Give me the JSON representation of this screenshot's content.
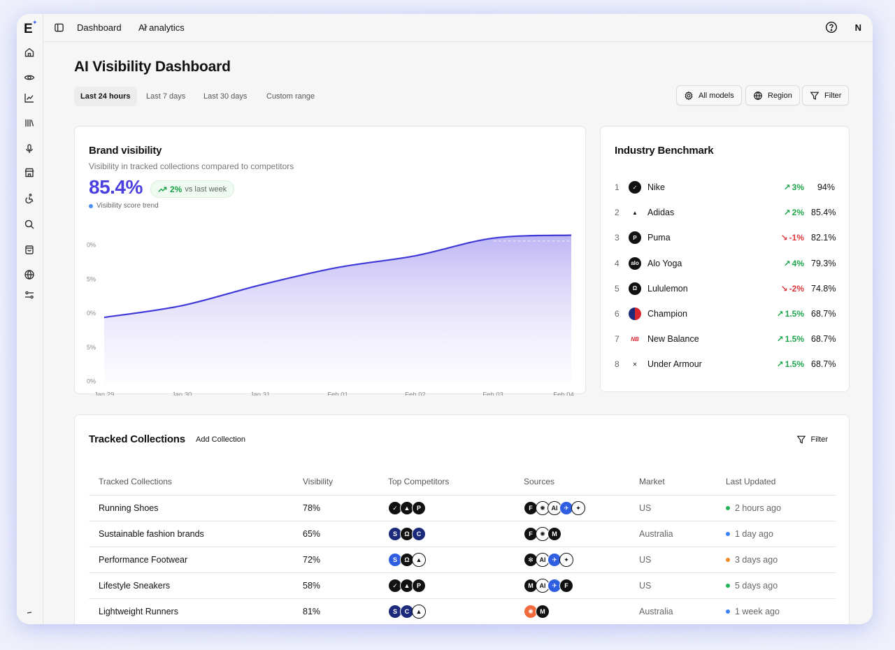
{
  "app": {
    "logo": "E"
  },
  "breadcrumb": {
    "root": "Dashboard",
    "current": "Ai analytics"
  },
  "user": {
    "avatar_initial": "N"
  },
  "page": {
    "title": "AI Visibility Dashboard"
  },
  "ranges": [
    "Last 24 hours",
    "Last 7 days",
    "Last 30 days",
    "Custom range"
  ],
  "active_range": "Last 24 hours",
  "toolbar": {
    "models_label": "All models",
    "region_label": "Region",
    "filter_label": "Filter"
  },
  "brand_card": {
    "title": "Brand visibility",
    "subtitle": "Visibility in tracked collections compared to competitors",
    "value": "85.4%",
    "delta": "2%",
    "delta_suffix": "vs last week",
    "legend": "Visibility score trend"
  },
  "chart_data": {
    "type": "area",
    "x": [
      "Jan 29",
      "Jan 30",
      "Jan 31",
      "Feb 01",
      "Feb 02",
      "Feb 03",
      "Feb 04"
    ],
    "y_tick_labels": [
      "0%",
      "5%",
      "0%",
      "5%",
      "0%"
    ],
    "series": [
      {
        "values": [
          12,
          16,
          23,
          29,
          33,
          39,
          40
        ]
      }
    ],
    "ylim": [
      0,
      40
    ],
    "grid": false,
    "color": "#3f39d8"
  },
  "benchmark": {
    "title": "Industry Benchmark",
    "rows": [
      {
        "rank": "1",
        "name": "Nike",
        "delta": "3%",
        "dir": "up",
        "value": "94%",
        "logo": "swoosh"
      },
      {
        "rank": "2",
        "name": "Adidas",
        "delta": "2%",
        "dir": "up",
        "value": "85.4%",
        "logo": "adidas-stripes"
      },
      {
        "rank": "3",
        "name": "Puma",
        "delta": "-1%",
        "dir": "down",
        "value": "82.1%",
        "logo": "puma"
      },
      {
        "rank": "4",
        "name": "Alo Yoga",
        "delta": "4%",
        "dir": "up",
        "value": "79.3%",
        "logo": "alo"
      },
      {
        "rank": "5",
        "name": "Lululemon",
        "delta": "-2%",
        "dir": "down",
        "value": "74.8%",
        "logo": "lululemon"
      },
      {
        "rank": "6",
        "name": "Champion",
        "delta": "1.5%",
        "dir": "up",
        "value": "68.7%",
        "logo": "champion"
      },
      {
        "rank": "7",
        "name": "New Balance",
        "delta": "1.5%",
        "dir": "up",
        "value": "68.7%",
        "logo": "new-balance"
      },
      {
        "rank": "8",
        "name": "Under Armour",
        "delta": "1.5%",
        "dir": "up",
        "value": "68.7%",
        "logo": "under-armour"
      }
    ]
  },
  "collections": {
    "title": "Tracked Collections",
    "add_label": "Add Collection",
    "filter_label": "Filter",
    "columns": [
      "Tracked Collections",
      "Visibility",
      "Top Competitors",
      "Sources",
      "Market",
      "Last Updated"
    ],
    "rows": [
      {
        "name": "Running Shoes",
        "visibility": "78%",
        "market": "US",
        "updated": "2 hours ago",
        "status_color": "#22b455"
      },
      {
        "name": "Sustainable fashion brands",
        "visibility": "65%",
        "market": "Australia",
        "updated": "1 day ago",
        "status_color": "#3b82f6"
      },
      {
        "name": "Performance Footwear",
        "visibility": "72%",
        "market": "US",
        "updated": "3 days ago",
        "status_color": "#f08a24"
      },
      {
        "name": "Lifestyle Sneakers",
        "visibility": "58%",
        "market": "US",
        "updated": "5 days ago",
        "status_color": "#22b455"
      },
      {
        "name": "Lightweight Runners",
        "visibility": "81%",
        "market": "Australia",
        "updated": "1 week ago",
        "status_color": "#3b82f6"
      }
    ]
  },
  "colors": {
    "accent": "#4b3fe0",
    "positive": "#1fa64c",
    "negative": "#e0373b",
    "brand_star": "#3b62f6"
  }
}
